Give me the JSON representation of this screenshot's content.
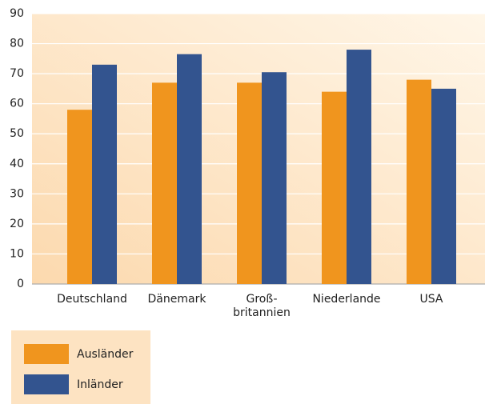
{
  "chart_data": {
    "type": "bar",
    "categories": [
      "Deutschland",
      "Dänemark",
      "Groß-\nbritannien",
      "Niederlande",
      "USA"
    ],
    "series": [
      {
        "name": "Ausländer",
        "color": "#f0951e",
        "values": [
          58,
          67,
          67,
          64,
          68
        ]
      },
      {
        "name": "Inländer",
        "color": "#33548f",
        "values": [
          73,
          76.5,
          70.5,
          78,
          65
        ]
      }
    ],
    "ylim": [
      0,
      90
    ],
    "yticks": [
      0,
      10,
      20,
      30,
      40,
      50,
      60,
      70,
      80,
      90
    ],
    "grid": true
  }
}
